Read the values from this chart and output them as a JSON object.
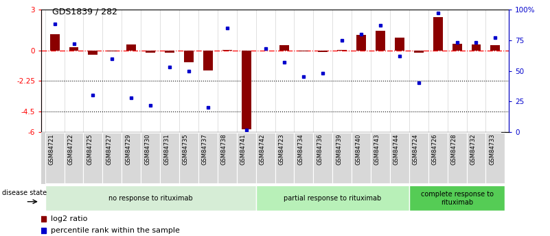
{
  "title": "GDS1839 / 282",
  "samples": [
    "GSM84721",
    "GSM84722",
    "GSM84725",
    "GSM84727",
    "GSM84729",
    "GSM84730",
    "GSM84731",
    "GSM84735",
    "GSM84737",
    "GSM84738",
    "GSM84741",
    "GSM84742",
    "GSM84723",
    "GSM84734",
    "GSM84736",
    "GSM84739",
    "GSM84740",
    "GSM84743",
    "GSM84744",
    "GSM84724",
    "GSM84726",
    "GSM84728",
    "GSM84732",
    "GSM84733"
  ],
  "log2_ratio": [
    1.2,
    0.25,
    -0.3,
    -0.05,
    0.45,
    -0.15,
    -0.18,
    -0.85,
    -1.45,
    0.04,
    -5.8,
    -0.04,
    0.38,
    -0.08,
    -0.12,
    0.04,
    1.15,
    1.45,
    0.95,
    -0.18,
    2.45,
    0.48,
    0.45,
    0.38
  ],
  "percentile_rank": [
    88,
    72,
    30,
    60,
    28,
    22,
    53,
    50,
    20,
    85,
    2,
    68,
    57,
    45,
    48,
    75,
    80,
    87,
    62,
    40,
    97,
    73,
    73,
    77
  ],
  "groups": [
    {
      "label": "no response to rituximab",
      "start": 0,
      "end": 11,
      "color": "#d6edd6"
    },
    {
      "label": "partial response to rituximab",
      "start": 11,
      "end": 19,
      "color": "#b8f0b8"
    },
    {
      "label": "complete response to\nrituximab",
      "start": 19,
      "end": 24,
      "color": "#55cc55"
    }
  ],
  "ylim": [
    -6,
    3
  ],
  "yticks_left": [
    -6,
    -4.5,
    -2.25,
    0,
    3
  ],
  "ytick_labels_left": [
    "-6",
    "-4.5",
    "-2.25",
    "0",
    "3"
  ],
  "yticks_right": [
    0,
    25,
    50,
    75,
    100
  ],
  "ytick_labels_right": [
    "0",
    "25",
    "50",
    "75",
    "100%"
  ],
  "bar_color": "#8B0000",
  "dot_color": "#0000CC",
  "background_color": "#ffffff",
  "legend_log2": "log2 ratio",
  "legend_pct": "percentile rank within the sample",
  "disease_state_label": "disease state"
}
